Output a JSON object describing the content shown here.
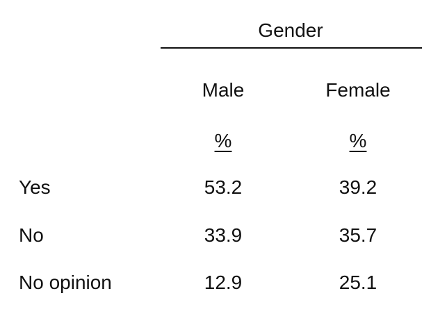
{
  "table": {
    "group_header": "Gender",
    "columns": [
      "Male",
      "Female"
    ],
    "units": [
      "%",
      "%"
    ],
    "rows": [
      {
        "label": "Yes",
        "values": [
          "53.2",
          "39.2"
        ]
      },
      {
        "label": "No",
        "values": [
          "33.9",
          "35.7"
        ]
      },
      {
        "label": "No opinion",
        "values": [
          "12.9",
          "25.1"
        ]
      }
    ]
  }
}
